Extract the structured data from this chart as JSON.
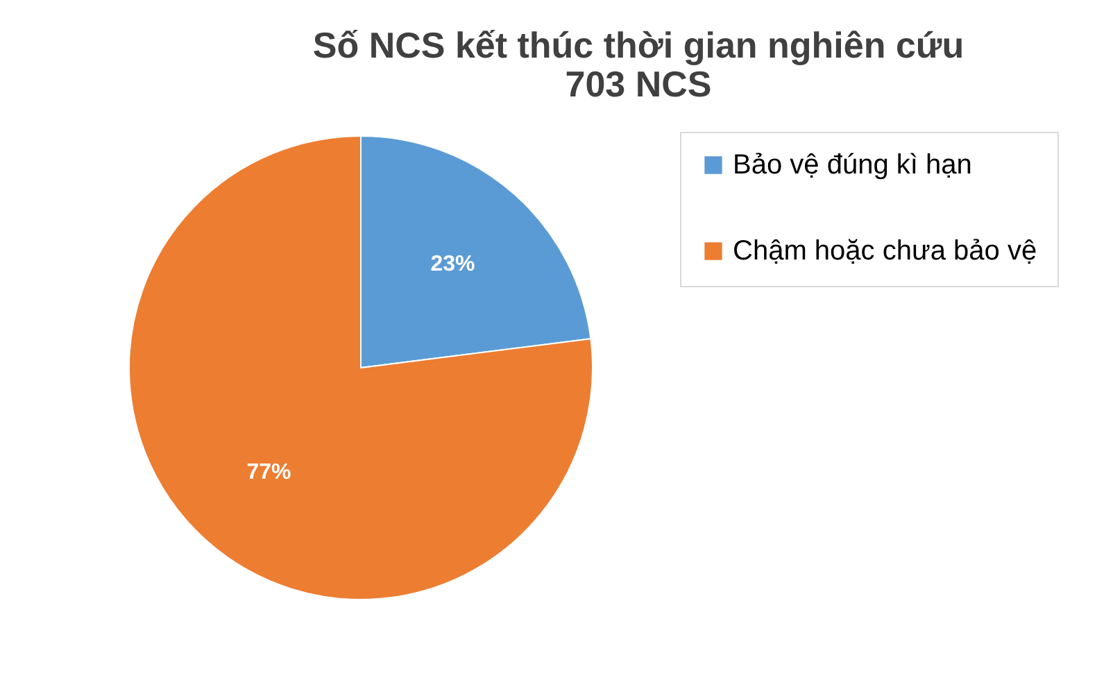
{
  "chart_data": {
    "type": "pie",
    "title": "Số NCS kết thúc thời gian nghiên cứu\n703 NCS",
    "categories": [
      "Bảo vệ đúng kì hạn",
      "Chậm hoặc chưa bảo vệ"
    ],
    "values": [
      23,
      77
    ],
    "colors": [
      "#5b9bd5",
      "#ed7d31"
    ],
    "value_labels": [
      "23%",
      "77%"
    ],
    "legend": "right"
  }
}
